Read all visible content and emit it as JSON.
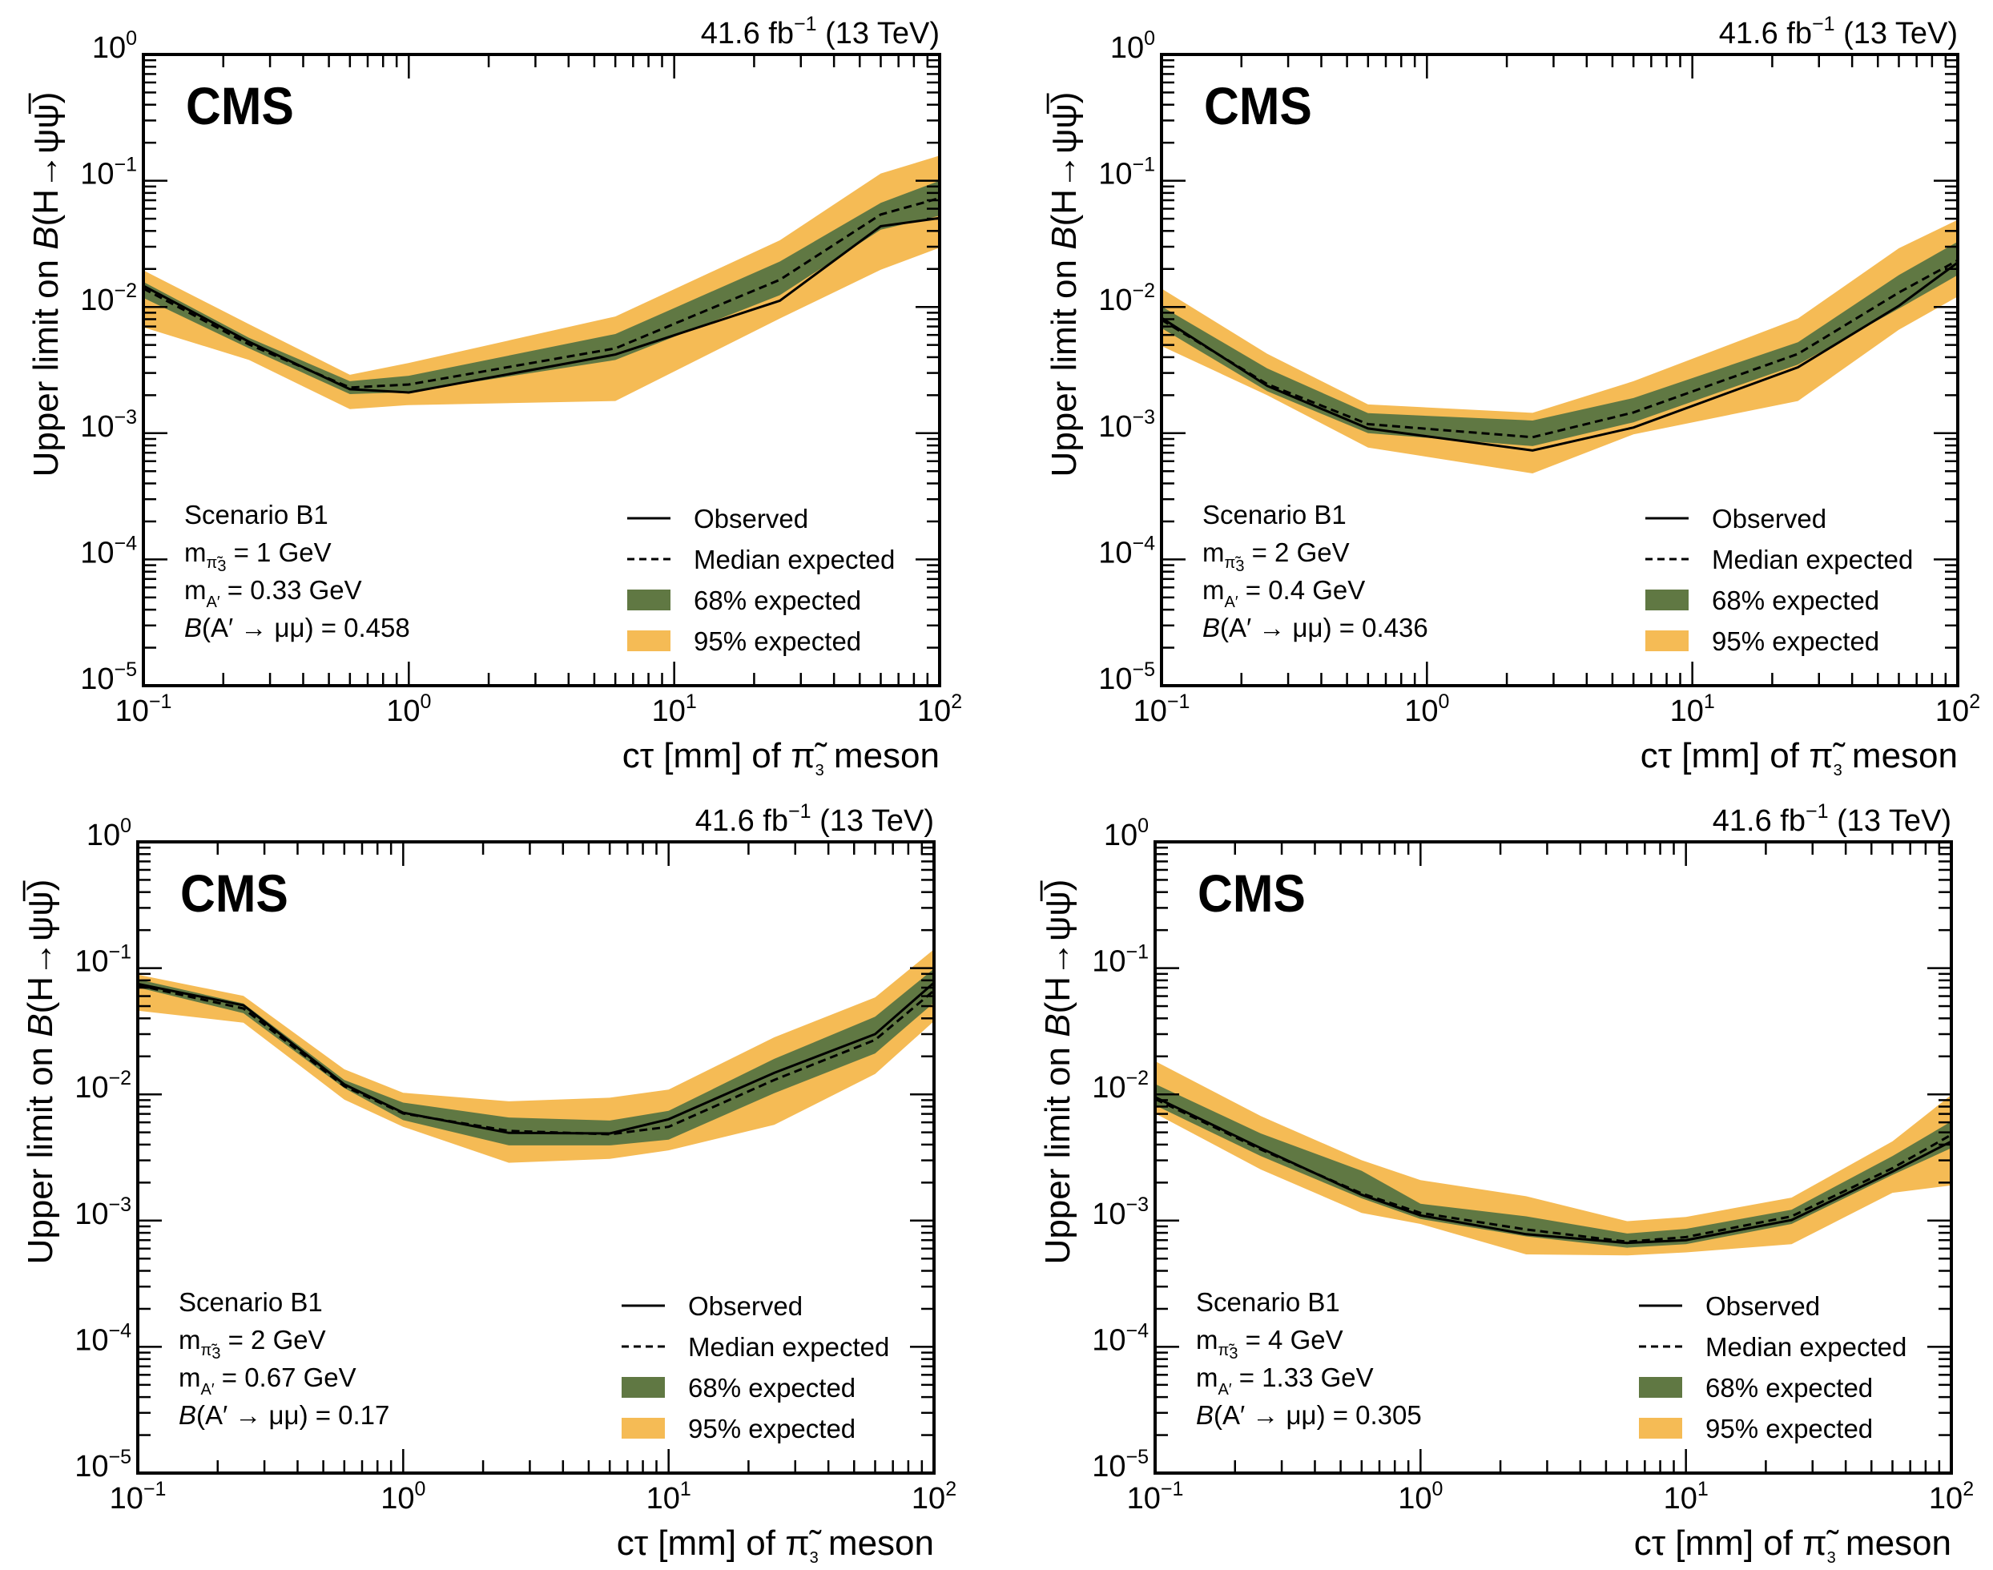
{
  "figure": {
    "colors": {
      "band68": "#607843",
      "band95": "#f5bb55",
      "line": "#000000",
      "frame": "#000000"
    }
  },
  "chart_data": [
    {
      "type": "line",
      "panel": "top-left",
      "experiment_label": "CMS",
      "header": {
        "lumi": "41.6",
        "lumi_unit": "fb",
        "lumi_exp": "−1",
        "energy": "(13 TeV)"
      },
      "ylabel": {
        "prefix": "Upper limit on ",
        "symbol": "B",
        "process": "(H→ψψ̅)"
      },
      "xlabel": {
        "prefix": "cτ [mm] of ",
        "particle": "π̃",
        "sub": "3",
        "suffix": " meson"
      },
      "xscale": "log",
      "yscale": "log",
      "xlim": [
        0.1,
        100
      ],
      "ylim": [
        1e-05,
        1
      ],
      "xticks": [
        {
          "base": "10",
          "exp": "−1",
          "value": 0.1
        },
        {
          "base": "10",
          "exp": "0",
          "value": 1
        },
        {
          "base": "10",
          "exp": "1",
          "value": 10
        },
        {
          "base": "10",
          "exp": "2",
          "value": 100
        }
      ],
      "yticks": [
        {
          "base": "10",
          "exp": "0",
          "value": 1
        },
        {
          "base": "10",
          "exp": "−1",
          "value": 0.1
        },
        {
          "base": "10",
          "exp": "−2",
          "value": 0.01
        },
        {
          "base": "10",
          "exp": "−3",
          "value": 0.001
        },
        {
          "base": "10",
          "exp": "−4",
          "value": 0.0001
        },
        {
          "base": "10",
          "exp": "−5",
          "value": 1e-05
        }
      ],
      "info": {
        "scenario": "Scenario B1",
        "m_pi3": "1 GeV",
        "m_A": "0.33 GeV",
        "br_A_mumu": "0.458"
      },
      "legend": {
        "position": "bottom-right",
        "entries": [
          "Observed",
          "Median expected",
          "68% expected",
          "95% expected"
        ]
      },
      "x": [
        0.1,
        0.25,
        0.6,
        1,
        6,
        25,
        60,
        100
      ],
      "series": [
        {
          "name": "Observed",
          "style": "solid",
          "values": [
            0.0147,
            0.0053,
            0.00223,
            0.0021,
            0.0042,
            0.0112,
            0.0436,
            0.0506
          ]
        },
        {
          "name": "Median expected",
          "style": "dashed",
          "values": [
            0.014,
            0.00505,
            0.0023,
            0.00243,
            0.0047,
            0.0164,
            0.054,
            0.0728
          ]
        },
        {
          "name": "68% expected",
          "style": "band",
          "upper": [
            0.0158,
            0.0057,
            0.00258,
            0.00285,
            0.0061,
            0.0229,
            0.0667,
            0.1
          ],
          "lower": [
            0.0118,
            0.0047,
            0.00204,
            0.00212,
            0.0038,
            0.0124,
            0.0409,
            0.0528
          ]
        },
        {
          "name": "95% expected",
          "style": "band",
          "upper": [
            0.0195,
            0.0073,
            0.0029,
            0.0036,
            0.0084,
            0.0337,
            0.114,
            0.158
          ],
          "lower": [
            0.0069,
            0.0038,
            0.00155,
            0.00167,
            0.0018,
            0.0081,
            0.0197,
            0.0295
          ]
        }
      ]
    },
    {
      "type": "line",
      "panel": "top-right",
      "experiment_label": "CMS",
      "header": {
        "lumi": "41.6",
        "lumi_unit": "fb",
        "lumi_exp": "−1",
        "energy": "(13 TeV)"
      },
      "ylabel": {
        "prefix": "Upper limit on ",
        "symbol": "B",
        "process": "(H→ψψ̅)"
      },
      "xlabel": {
        "prefix": "cτ [mm] of ",
        "particle": "π̃",
        "sub": "3",
        "suffix": " meson"
      },
      "xscale": "log",
      "yscale": "log",
      "xlim": [
        0.1,
        100
      ],
      "ylim": [
        1e-05,
        1
      ],
      "xticks": [
        {
          "base": "10",
          "exp": "−1",
          "value": 0.1
        },
        {
          "base": "10",
          "exp": "0",
          "value": 1
        },
        {
          "base": "10",
          "exp": "1",
          "value": 10
        },
        {
          "base": "10",
          "exp": "2",
          "value": 100
        }
      ],
      "yticks": [
        {
          "base": "10",
          "exp": "0",
          "value": 1
        },
        {
          "base": "10",
          "exp": "−1",
          "value": 0.1
        },
        {
          "base": "10",
          "exp": "−2",
          "value": 0.01
        },
        {
          "base": "10",
          "exp": "−3",
          "value": 0.001
        },
        {
          "base": "10",
          "exp": "−4",
          "value": 0.0001
        },
        {
          "base": "10",
          "exp": "−5",
          "value": 1e-05
        }
      ],
      "info": {
        "scenario": "Scenario B1",
        "m_pi3": "2 GeV",
        "m_A": "0.4 GeV",
        "br_A_mumu": "0.436"
      },
      "legend": {
        "position": "bottom-right",
        "entries": [
          "Observed",
          "Median expected",
          "68% expected",
          "95% expected"
        ]
      },
      "x": [
        0.1,
        0.25,
        0.6,
        2.5,
        6,
        25,
        60,
        100
      ],
      "series": [
        {
          "name": "Observed",
          "style": "solid",
          "values": [
            0.0082,
            0.00237,
            0.00109,
            0.00073,
            0.00111,
            0.00333,
            0.0102,
            0.0225
          ]
        },
        {
          "name": "Median expected",
          "style": "dashed",
          "values": [
            0.0079,
            0.00245,
            0.00118,
            0.00093,
            0.00146,
            0.00425,
            0.013,
            0.0234
          ]
        },
        {
          "name": "68% expected",
          "style": "band",
          "upper": [
            0.0101,
            0.00326,
            0.00144,
            0.00126,
            0.0019,
            0.00525,
            0.0179,
            0.0329
          ],
          "lower": [
            0.0068,
            0.00215,
            0.001,
            0.00079,
            0.00122,
            0.0035,
            0.0097,
            0.0179
          ]
        },
        {
          "name": "95% expected",
          "style": "band",
          "upper": [
            0.014,
            0.00426,
            0.00169,
            0.00145,
            0.00258,
            0.0081,
            0.0292,
            0.049
          ],
          "lower": [
            0.0049,
            0.002,
            0.00077,
            0.00048,
            0.00098,
            0.0018,
            0.0066,
            0.0121
          ]
        }
      ]
    },
    {
      "type": "line",
      "panel": "bottom-left",
      "experiment_label": "CMS",
      "header": {
        "lumi": "41.6",
        "lumi_unit": "fb",
        "lumi_exp": "−1",
        "energy": "(13 TeV)"
      },
      "ylabel": {
        "prefix": "Upper limit on ",
        "symbol": "B",
        "process": "(H→ψψ̅)"
      },
      "xlabel": {
        "prefix": "cτ [mm] of ",
        "particle": "π̃",
        "sub": "3",
        "suffix": " meson"
      },
      "xscale": "log",
      "yscale": "log",
      "xlim": [
        0.1,
        100
      ],
      "ylim": [
        1e-05,
        1
      ],
      "xticks": [
        {
          "base": "10",
          "exp": "−1",
          "value": 0.1
        },
        {
          "base": "10",
          "exp": "0",
          "value": 1
        },
        {
          "base": "10",
          "exp": "1",
          "value": 10
        },
        {
          "base": "10",
          "exp": "2",
          "value": 100
        }
      ],
      "yticks": [
        {
          "base": "10",
          "exp": "0",
          "value": 1
        },
        {
          "base": "10",
          "exp": "−1",
          "value": 0.1
        },
        {
          "base": "10",
          "exp": "−2",
          "value": 0.01
        },
        {
          "base": "10",
          "exp": "−3",
          "value": 0.001
        },
        {
          "base": "10",
          "exp": "−4",
          "value": 0.0001
        },
        {
          "base": "10",
          "exp": "−5",
          "value": 1e-05
        }
      ],
      "info": {
        "scenario": "Scenario B1",
        "m_pi3": "2 GeV",
        "m_A": "0.67 GeV",
        "br_A_mumu": "0.17"
      },
      "legend": {
        "position": "bottom-right",
        "entries": [
          "Observed",
          "Median expected",
          "68% expected",
          "95% expected"
        ]
      },
      "x": [
        0.1,
        0.25,
        0.6,
        1,
        2.5,
        6,
        10,
        25,
        60,
        100
      ],
      "series": [
        {
          "name": "Observed",
          "style": "solid",
          "values": [
            0.075,
            0.0508,
            0.012,
            0.00716,
            0.00495,
            0.0049,
            0.00635,
            0.0148,
            0.03,
            0.0767
          ]
        },
        {
          "name": "Median expected",
          "style": "dashed",
          "values": [
            0.0731,
            0.0479,
            0.0116,
            0.00706,
            0.00514,
            0.00483,
            0.00553,
            0.013,
            0.027,
            0.0664
          ]
        },
        {
          "name": "68% expected",
          "style": "band",
          "upper": [
            0.0815,
            0.0525,
            0.013,
            0.0086,
            0.00656,
            0.0062,
            0.0074,
            0.0191,
            0.0412,
            0.099
          ],
          "lower": [
            0.0703,
            0.0439,
            0.0112,
            0.00625,
            0.00394,
            0.00394,
            0.00438,
            0.0102,
            0.0211,
            0.0533
          ]
        },
        {
          "name": "95% expected",
          "style": "band",
          "upper": [
            0.0889,
            0.0602,
            0.0158,
            0.0103,
            0.0088,
            0.0094,
            0.0109,
            0.0283,
            0.0587,
            0.141
          ],
          "lower": [
            0.046,
            0.037,
            0.0091,
            0.00553,
            0.00287,
            0.00308,
            0.0036,
            0.00573,
            0.0145,
            0.038
          ]
        }
      ]
    },
    {
      "type": "line",
      "panel": "bottom-right",
      "experiment_label": "CMS",
      "header": {
        "lumi": "41.6",
        "lumi_unit": "fb",
        "lumi_exp": "−1",
        "energy": "(13 TeV)"
      },
      "ylabel": {
        "prefix": "Upper limit on ",
        "symbol": "B",
        "process": "(H→ψψ̅)"
      },
      "xlabel": {
        "prefix": "cτ [mm] of ",
        "particle": "π̃",
        "sub": "3",
        "suffix": " meson"
      },
      "xscale": "log",
      "yscale": "log",
      "xlim": [
        0.1,
        100
      ],
      "ylim": [
        1e-05,
        1
      ],
      "xticks": [
        {
          "base": "10",
          "exp": "−1",
          "value": 0.1
        },
        {
          "base": "10",
          "exp": "0",
          "value": 1
        },
        {
          "base": "10",
          "exp": "1",
          "value": 10
        },
        {
          "base": "10",
          "exp": "2",
          "value": 100
        }
      ],
      "yticks": [
        {
          "base": "10",
          "exp": "0",
          "value": 1
        },
        {
          "base": "10",
          "exp": "−1",
          "value": 0.1
        },
        {
          "base": "10",
          "exp": "−2",
          "value": 0.01
        },
        {
          "base": "10",
          "exp": "−3",
          "value": 0.001
        },
        {
          "base": "10",
          "exp": "−4",
          "value": 0.0001
        },
        {
          "base": "10",
          "exp": "−5",
          "value": 1e-05
        }
      ],
      "info": {
        "scenario": "Scenario B1",
        "m_pi3": "4 GeV",
        "m_A": "1.33 GeV",
        "br_A_mumu": "0.305"
      },
      "legend": {
        "position": "bottom-right",
        "entries": [
          "Observed",
          "Median expected",
          "68% expected",
          "95% expected"
        ]
      },
      "x": [
        0.1,
        0.25,
        0.6,
        1,
        2.5,
        6,
        10,
        25,
        60,
        100
      ],
      "series": [
        {
          "name": "Observed",
          "style": "solid",
          "values": [
            0.0095,
            0.00375,
            0.0016,
            0.0011,
            0.00078,
            0.000665,
            0.0007,
            0.00101,
            0.00244,
            0.00424
          ]
        },
        {
          "name": "Median expected",
          "style": "dashed",
          "values": [
            0.0092,
            0.00366,
            0.00164,
            0.00115,
            0.00085,
            0.00068,
            0.00074,
            0.00108,
            0.0026,
            0.00479
          ]
        },
        {
          "name": "68% expected",
          "style": "band",
          "upper": [
            0.0121,
            0.0049,
            0.00248,
            0.00136,
            0.00108,
            0.00079,
            0.00086,
            0.00122,
            0.00324,
            0.0061
          ],
          "lower": [
            0.0082,
            0.00324,
            0.0015,
            0.00103,
            0.00075,
            0.00061,
            0.00065,
            0.00094,
            0.0023,
            0.00375
          ]
        },
        {
          "name": "95% expected",
          "style": "band",
          "upper": [
            0.0183,
            0.00673,
            0.00301,
            0.00209,
            0.00156,
            0.00099,
            0.00107,
            0.00152,
            0.00424,
            0.0099
          ],
          "lower": [
            0.00706,
            0.00254,
            0.00115,
            0.00094,
            0.00054,
            0.00053,
            0.00056,
            0.00065,
            0.00166,
            0.0019
          ]
        }
      ]
    }
  ]
}
